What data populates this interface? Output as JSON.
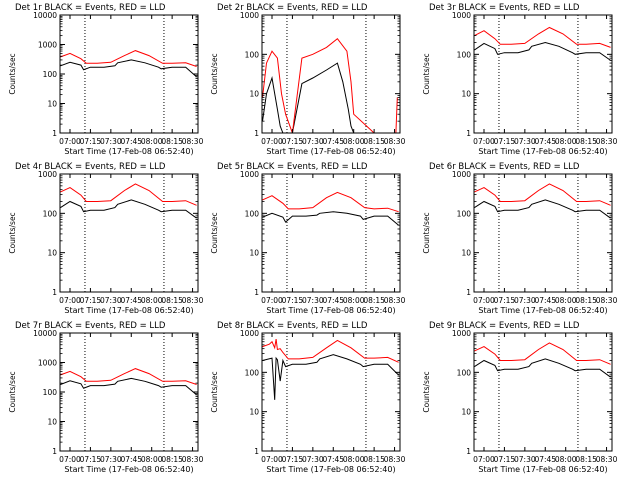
{
  "figure": {
    "background": "#ffffff",
    "colors": {
      "events": "#000000",
      "lld": "#ff0000",
      "axes": "#000000"
    }
  },
  "chart_data": [
    {
      "type": "line",
      "title": "Det 1r BLACK = Events, RED = LLD",
      "xlabel": "Start Time (17-Feb-08 06:52:40)",
      "ylabel": "Counts/sec",
      "yscale": "log",
      "ylim": [
        1,
        10000
      ],
      "xlim": [
        "06:52:40",
        "08:34:00"
      ],
      "xticks": [
        "07:00",
        "07:15",
        "07:30",
        "07:45",
        "08:00",
        "08:15",
        "08:30"
      ],
      "yticks": [
        "1",
        "10",
        "100",
        "1000",
        "10000"
      ],
      "vlines": [
        "07:11",
        "08:09"
      ],
      "series": [
        {
          "name": "Events",
          "color": "#000000",
          "x": [
            "06:53",
            "07:00",
            "07:08",
            "07:10",
            "07:15",
            "07:25",
            "07:33",
            "07:35",
            "07:45",
            "07:55",
            "08:05",
            "08:07",
            "08:15",
            "08:25",
            "08:33"
          ],
          "y": [
            190,
            250,
            200,
            140,
            170,
            170,
            190,
            240,
            300,
            240,
            170,
            150,
            170,
            170,
            80
          ]
        },
        {
          "name": "LLD",
          "color": "#ff0000",
          "x": [
            "06:53",
            "07:00",
            "07:08",
            "07:12",
            "07:20",
            "07:30",
            "07:40",
            "07:48",
            "07:58",
            "08:08",
            "08:15",
            "08:25",
            "08:33"
          ],
          "y": [
            380,
            500,
            330,
            230,
            230,
            250,
            420,
            620,
            420,
            230,
            230,
            240,
            180
          ]
        }
      ]
    },
    {
      "type": "line",
      "title": "Det 2r BLACK = Events, RED = LLD",
      "xlabel": "Start Time (17-Feb-08 06:52:40)",
      "ylabel": "Counts/sec",
      "yscale": "log",
      "ylim": [
        1,
        1000
      ],
      "xlim": [
        "06:52:40",
        "08:34:00"
      ],
      "xticks": [
        "07:00",
        "07:15",
        "07:30",
        "07:45",
        "08:00",
        "08:15",
        "08:30"
      ],
      "yticks": [
        "1",
        "10",
        "100",
        "1000"
      ],
      "vlines": [
        "07:11",
        "08:09"
      ],
      "series": [
        {
          "name": "Events",
          "color": "#000000",
          "x": [
            "06:53",
            "06:56",
            "07:00",
            "07:04",
            "07:06",
            "07:08",
            "07:10",
            "07:15",
            "07:22",
            "07:30",
            "07:40",
            "07:48",
            "07:52",
            "07:56",
            "07:58",
            "08:00"
          ],
          "y": [
            2,
            10,
            25,
            4,
            1.5,
            1,
            1,
            1,
            18,
            25,
            40,
            60,
            20,
            4,
            1.5,
            1
          ]
        },
        {
          "name": "LLD",
          "color": "#ff0000",
          "x": [
            "06:53",
            "06:56",
            "07:00",
            "07:04",
            "07:07",
            "07:10",
            "07:15",
            "07:22",
            "07:30",
            "07:40",
            "07:48",
            "07:55",
            "07:58",
            "08:00",
            "08:15",
            "08:31",
            "08:32"
          ],
          "y": [
            8,
            60,
            120,
            80,
            10,
            3,
            1,
            80,
            100,
            150,
            250,
            120,
            20,
            3,
            1,
            1,
            8
          ]
        }
      ]
    },
    {
      "type": "line",
      "title": "Det 3r BLACK = Events, RED = LLD",
      "xlabel": "Start Time (17-Feb-08 06:52:40)",
      "ylabel": "Counts/sec",
      "yscale": "log",
      "ylim": [
        1,
        1000
      ],
      "xlim": [
        "06:52:40",
        "08:34:00"
      ],
      "xticks": [
        "07:00",
        "07:15",
        "07:30",
        "07:45",
        "08:00",
        "08:15",
        "08:30"
      ],
      "yticks": [
        "1",
        "10",
        "100",
        "1000"
      ],
      "vlines": [
        "07:11",
        "08:09"
      ],
      "series": [
        {
          "name": "Events",
          "color": "#000000",
          "x": [
            "06:53",
            "07:00",
            "07:08",
            "07:10",
            "07:15",
            "07:25",
            "07:33",
            "07:35",
            "07:45",
            "07:55",
            "08:05",
            "08:07",
            "08:15",
            "08:25",
            "08:33"
          ],
          "y": [
            130,
            190,
            140,
            100,
            110,
            110,
            130,
            160,
            200,
            160,
            110,
            100,
            110,
            110,
            70
          ]
        },
        {
          "name": "LLD",
          "color": "#ff0000",
          "x": [
            "06:53",
            "07:00",
            "07:08",
            "07:12",
            "07:20",
            "07:30",
            "07:40",
            "07:48",
            "07:58",
            "08:08",
            "08:15",
            "08:25",
            "08:33"
          ],
          "y": [
            300,
            400,
            250,
            180,
            180,
            190,
            330,
            480,
            330,
            180,
            180,
            190,
            150
          ]
        }
      ]
    },
    {
      "type": "line",
      "title": "Det 4r BLACK = Events, RED = LLD",
      "xlabel": "Start Time (17-Feb-08 06:52:40)",
      "ylabel": "Counts/sec",
      "yscale": "log",
      "ylim": [
        1,
        1000
      ],
      "xlim": [
        "06:52:40",
        "08:34:00"
      ],
      "xticks": [
        "07:00",
        "07:15",
        "07:30",
        "07:45",
        "08:00",
        "08:15",
        "08:30"
      ],
      "yticks": [
        "1",
        "10",
        "100",
        "1000"
      ],
      "vlines": [
        "07:11",
        "08:09"
      ],
      "series": [
        {
          "name": "Events",
          "color": "#000000",
          "x": [
            "06:53",
            "07:00",
            "07:08",
            "07:10",
            "07:15",
            "07:25",
            "07:33",
            "07:35",
            "07:45",
            "07:55",
            "08:05",
            "08:07",
            "08:15",
            "08:25",
            "08:33"
          ],
          "y": [
            140,
            200,
            150,
            110,
            120,
            120,
            140,
            170,
            220,
            170,
            120,
            110,
            120,
            120,
            75
          ]
        },
        {
          "name": "LLD",
          "color": "#ff0000",
          "x": [
            "06:53",
            "07:00",
            "07:08",
            "07:12",
            "07:20",
            "07:30",
            "07:40",
            "07:48",
            "07:58",
            "08:08",
            "08:15",
            "08:25",
            "08:33"
          ],
          "y": [
            350,
            450,
            290,
            200,
            200,
            210,
            380,
            560,
            380,
            200,
            200,
            210,
            160
          ]
        }
      ]
    },
    {
      "type": "line",
      "title": "Det 5r BLACK = Events, RED = LLD",
      "xlabel": "Start Time (17-Feb-08 06:52:40)",
      "ylabel": "Counts/sec",
      "yscale": "log",
      "ylim": [
        1,
        1000
      ],
      "xlim": [
        "06:52:40",
        "08:34:00"
      ],
      "xticks": [
        "07:00",
        "07:15",
        "07:30",
        "07:45",
        "08:00",
        "08:15",
        "08:30"
      ],
      "yticks": [
        "1",
        "10",
        "100",
        "1000"
      ],
      "vlines": [
        "07:11",
        "08:09"
      ],
      "series": [
        {
          "name": "Events",
          "color": "#000000",
          "x": [
            "06:53",
            "07:00",
            "07:08",
            "07:10",
            "07:15",
            "07:25",
            "07:33",
            "07:35",
            "07:45",
            "07:55",
            "08:05",
            "08:07",
            "08:15",
            "08:25",
            "08:33"
          ],
          "y": [
            80,
            100,
            80,
            60,
            85,
            85,
            90,
            100,
            110,
            100,
            85,
            70,
            85,
            85,
            50
          ]
        },
        {
          "name": "LLD",
          "color": "#ff0000",
          "x": [
            "06:53",
            "07:00",
            "07:08",
            "07:12",
            "07:20",
            "07:30",
            "07:40",
            "07:48",
            "07:58",
            "08:08",
            "08:15",
            "08:25",
            "08:33"
          ],
          "y": [
            220,
            280,
            180,
            130,
            130,
            140,
            250,
            340,
            250,
            140,
            130,
            135,
            110
          ]
        }
      ]
    },
    {
      "type": "line",
      "title": "Det 6r BLACK = Events, RED = LLD",
      "xlabel": "Start Time (17-Feb-08 06:52:40)",
      "ylabel": "Counts/sec",
      "yscale": "log",
      "ylim": [
        1,
        1000
      ],
      "xlim": [
        "06:52:40",
        "08:34:00"
      ],
      "xticks": [
        "07:00",
        "07:15",
        "07:30",
        "07:45",
        "08:00",
        "08:15",
        "08:30"
      ],
      "yticks": [
        "1",
        "10",
        "100",
        "1000"
      ],
      "vlines": [
        "07:11",
        "08:09"
      ],
      "series": [
        {
          "name": "Events",
          "color": "#000000",
          "x": [
            "06:53",
            "07:00",
            "07:08",
            "07:10",
            "07:15",
            "07:25",
            "07:33",
            "07:35",
            "07:45",
            "07:55",
            "08:05",
            "08:07",
            "08:15",
            "08:25",
            "08:33"
          ],
          "y": [
            140,
            200,
            150,
            110,
            120,
            120,
            140,
            170,
            220,
            170,
            120,
            110,
            120,
            120,
            75
          ]
        },
        {
          "name": "LLD",
          "color": "#ff0000",
          "x": [
            "06:53",
            "07:00",
            "07:08",
            "07:12",
            "07:20",
            "07:30",
            "07:40",
            "07:48",
            "07:58",
            "08:08",
            "08:15",
            "08:25",
            "08:33"
          ],
          "y": [
            350,
            450,
            290,
            200,
            200,
            210,
            380,
            560,
            380,
            200,
            200,
            210,
            160
          ]
        }
      ]
    },
    {
      "type": "line",
      "title": "Det 7r BLACK = Events, RED = LLD",
      "xlabel": "Start Time (17-Feb-08 06:52:40)",
      "ylabel": "Counts/sec",
      "yscale": "log",
      "ylim": [
        1,
        10000
      ],
      "xlim": [
        "06:52:40",
        "08:34:00"
      ],
      "xticks": [
        "07:00",
        "07:15",
        "07:30",
        "07:45",
        "08:00",
        "08:15",
        "08:30"
      ],
      "yticks": [
        "1",
        "10",
        "100",
        "1000",
        "10000"
      ],
      "vlines": [
        "07:11",
        "08:09"
      ],
      "series": [
        {
          "name": "Events",
          "color": "#000000",
          "x": [
            "06:53",
            "07:00",
            "07:08",
            "07:10",
            "07:15",
            "07:25",
            "07:33",
            "07:35",
            "07:45",
            "07:55",
            "08:05",
            "08:07",
            "08:15",
            "08:25",
            "08:33"
          ],
          "y": [
            180,
            240,
            190,
            135,
            165,
            165,
            185,
            230,
            290,
            230,
            165,
            145,
            165,
            165,
            80
          ]
        },
        {
          "name": "LLD",
          "color": "#ff0000",
          "x": [
            "06:53",
            "07:00",
            "07:08",
            "07:12",
            "07:20",
            "07:30",
            "07:40",
            "07:48",
            "07:58",
            "08:08",
            "08:15",
            "08:25",
            "08:33"
          ],
          "y": [
            380,
            500,
            330,
            230,
            230,
            250,
            420,
            620,
            420,
            230,
            230,
            240,
            180
          ]
        }
      ]
    },
    {
      "type": "line",
      "title": "Det 8r BLACK = Events, RED = LLD",
      "xlabel": "Start Time (17-Feb-08 06:52:40)",
      "ylabel": "Counts/sec",
      "yscale": "log",
      "ylim": [
        1,
        1000
      ],
      "xlim": [
        "06:52:40",
        "08:34:00"
      ],
      "xticks": [
        "07:00",
        "07:15",
        "07:30",
        "07:45",
        "08:00",
        "08:15",
        "08:30"
      ],
      "yticks": [
        "1",
        "10",
        "100",
        "1000"
      ],
      "vlines": [
        "07:11",
        "08:09"
      ],
      "series": [
        {
          "name": "Events",
          "color": "#000000",
          "x": [
            "06:53",
            "07:00",
            "07:02",
            "07:03",
            "07:04",
            "07:06",
            "07:08",
            "07:10",
            "07:15",
            "07:25",
            "07:33",
            "07:35",
            "07:45",
            "07:55",
            "08:05",
            "08:07",
            "08:15",
            "08:25",
            "08:33"
          ],
          "y": [
            200,
            230,
            20,
            230,
            210,
            60,
            200,
            140,
            160,
            160,
            180,
            220,
            280,
            220,
            160,
            140,
            160,
            160,
            85
          ]
        },
        {
          "name": "LLD",
          "color": "#ff0000",
          "x": [
            "06:53",
            "06:58",
            "07:00",
            "07:02",
            "07:03",
            "07:04",
            "07:06",
            "07:08",
            "07:12",
            "07:20",
            "07:30",
            "07:40",
            "07:48",
            "07:58",
            "08:08",
            "08:15",
            "08:25",
            "08:33"
          ],
          "y": [
            450,
            520,
            600,
            420,
            700,
            380,
            400,
            320,
            220,
            220,
            240,
            420,
            650,
            420,
            230,
            230,
            240,
            180
          ]
        }
      ]
    },
    {
      "type": "line",
      "title": "Det 9r BLACK = Events, RED = LLD",
      "xlabel": "Start Time (17-Feb-08 06:52:40)",
      "ylabel": "Counts/sec",
      "yscale": "log",
      "ylim": [
        1,
        1000
      ],
      "xlim": [
        "06:52:40",
        "08:34:00"
      ],
      "xticks": [
        "07:00",
        "07:15",
        "07:30",
        "07:45",
        "08:00",
        "08:15",
        "08:30"
      ],
      "yticks": [
        "1",
        "10",
        "100",
        "1000"
      ],
      "vlines": [
        "07:11",
        "08:09"
      ],
      "series": [
        {
          "name": "Events",
          "color": "#000000",
          "x": [
            "06:53",
            "07:00",
            "07:08",
            "07:10",
            "07:15",
            "07:25",
            "07:33",
            "07:35",
            "07:45",
            "07:55",
            "08:05",
            "08:07",
            "08:15",
            "08:25",
            "08:33"
          ],
          "y": [
            140,
            200,
            150,
            110,
            120,
            120,
            140,
            170,
            220,
            170,
            120,
            110,
            120,
            120,
            75
          ]
        },
        {
          "name": "LLD",
          "color": "#ff0000",
          "x": [
            "06:53",
            "07:00",
            "07:08",
            "07:12",
            "07:20",
            "07:30",
            "07:40",
            "07:48",
            "07:58",
            "08:08",
            "08:15",
            "08:25",
            "08:33"
          ],
          "y": [
            350,
            450,
            290,
            200,
            200,
            210,
            380,
            560,
            380,
            200,
            200,
            210,
            160
          ]
        }
      ]
    }
  ]
}
